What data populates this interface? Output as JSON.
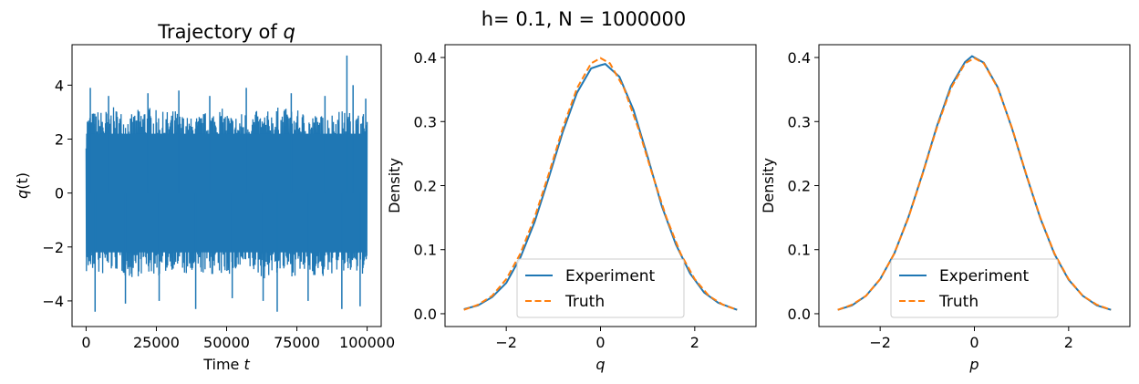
{
  "figure": {
    "suptitle": "h= 0.1, N = 1000000"
  },
  "colors": {
    "experiment": "#1f77b4",
    "truth": "#ff7f0e",
    "trajectory": "#1f77b4"
  },
  "chart_data": [
    {
      "type": "line",
      "title": "Trajectory of q",
      "title_parts": {
        "text": "Trajectory of ",
        "var": "q"
      },
      "xlabel": "Time t",
      "xlabel_parts": {
        "text": "Time ",
        "var": "t"
      },
      "ylabel": "q(t)",
      "ylabel_parts": {
        "var": "q",
        "text": "(t)"
      },
      "xlim": [
        -5000,
        105000
      ],
      "ylim": [
        -4.95,
        5.5
      ],
      "xticks": [
        0,
        25000,
        50000,
        75000,
        100000
      ],
      "xtick_labels": [
        "0",
        "25000",
        "50000",
        "75000",
        "100000"
      ],
      "yticks": [
        -4,
        -2,
        0,
        2,
        4
      ],
      "ytick_labels": [
        "−4",
        "−2",
        "0",
        "2",
        "4"
      ],
      "grid": false,
      "series": [
        {
          "x_range": [
            0,
            100000
          ],
          "envelope_upper": [
            3.0,
            3.1,
            3.2,
            2.9,
            3.3,
            3.0,
            3.1,
            2.8,
            3.0,
            3.2,
            2.9,
            3.1,
            3.0,
            3.2,
            3.1,
            3.0,
            2.9,
            3.1,
            3.0,
            3.0
          ],
          "envelope_lower": [
            -3.0,
            -3.1,
            -2.9,
            -3.2,
            -3.0,
            -3.1,
            -2.8,
            -3.2,
            -3.0,
            -3.1,
            -3.0,
            -2.9,
            -3.2,
            -3.0,
            -3.1,
            -3.0,
            -3.2,
            -2.9,
            -3.1,
            -3.0
          ],
          "spikes": [
            [
              1500,
              3.9
            ],
            [
              3200,
              -4.4
            ],
            [
              8000,
              3.6
            ],
            [
              14000,
              -4.1
            ],
            [
              22000,
              3.7
            ],
            [
              26000,
              -4.0
            ],
            [
              33000,
              3.8
            ],
            [
              39000,
              -4.3
            ],
            [
              44000,
              3.6
            ],
            [
              52000,
              -3.9
            ],
            [
              57000,
              3.9
            ],
            [
              63000,
              -4.0
            ],
            [
              68000,
              -4.4
            ],
            [
              73000,
              3.7
            ],
            [
              79000,
              -4.0
            ],
            [
              85000,
              3.6
            ],
            [
              91000,
              -4.3
            ],
            [
              92800,
              5.1
            ],
            [
              95000,
              4.0
            ],
            [
              97500,
              -4.2
            ],
            [
              99500,
              3.5
            ]
          ]
        }
      ]
    },
    {
      "type": "line",
      "title": "",
      "xlabel": "q",
      "ylabel": "Density",
      "xlim": [
        -3.3,
        3.3
      ],
      "ylim": [
        -0.02,
        0.42
      ],
      "xticks": [
        -2,
        0,
        2
      ],
      "xtick_labels": [
        "−2",
        "0",
        "2"
      ],
      "yticks": [
        0.0,
        0.1,
        0.2,
        0.3,
        0.4
      ],
      "ytick_labels": [
        "0.0",
        "0.1",
        "0.2",
        "0.3",
        "0.4"
      ],
      "legend": {
        "position": "lower-center",
        "entries": [
          "Experiment",
          "Truth"
        ]
      },
      "series": [
        {
          "name": "Experiment",
          "style": "solid",
          "x": [
            -2.9,
            -2.6,
            -2.3,
            -2.0,
            -1.7,
            -1.4,
            -1.1,
            -0.8,
            -0.5,
            -0.2,
            0.0,
            0.1,
            0.4,
            0.7,
            1.0,
            1.3,
            1.6,
            1.9,
            2.2,
            2.5,
            2.9
          ],
          "y": [
            0.007,
            0.013,
            0.026,
            0.048,
            0.088,
            0.143,
            0.212,
            0.284,
            0.345,
            0.383,
            0.388,
            0.39,
            0.37,
            0.318,
            0.245,
            0.168,
            0.108,
            0.063,
            0.033,
            0.017,
            0.006
          ]
        },
        {
          "name": "Truth",
          "style": "dashed",
          "x": [
            -2.9,
            -2.6,
            -2.3,
            -2.0,
            -1.7,
            -1.4,
            -1.1,
            -0.8,
            -0.5,
            -0.2,
            0.0,
            0.2,
            0.5,
            0.8,
            1.1,
            1.4,
            1.7,
            2.0,
            2.3,
            2.6,
            2.9
          ],
          "y": [
            0.006,
            0.014,
            0.028,
            0.054,
            0.094,
            0.15,
            0.218,
            0.29,
            0.352,
            0.391,
            0.399,
            0.391,
            0.352,
            0.29,
            0.218,
            0.15,
            0.094,
            0.054,
            0.028,
            0.014,
            0.006
          ]
        }
      ]
    },
    {
      "type": "line",
      "title": "",
      "xlabel": "p",
      "ylabel": "Density",
      "xlim": [
        -3.3,
        3.3
      ],
      "ylim": [
        -0.02,
        0.42
      ],
      "xticks": [
        -2,
        0,
        2
      ],
      "xtick_labels": [
        "−2",
        "0",
        "2"
      ],
      "yticks": [
        0.0,
        0.1,
        0.2,
        0.3,
        0.4
      ],
      "ytick_labels": [
        "0.0",
        "0.1",
        "0.2",
        "0.3",
        "0.4"
      ],
      "legend": {
        "position": "lower-center",
        "entries": [
          "Experiment",
          "Truth"
        ]
      },
      "series": [
        {
          "name": "Experiment",
          "style": "solid",
          "x": [
            -2.9,
            -2.6,
            -2.3,
            -2.0,
            -1.7,
            -1.4,
            -1.1,
            -0.8,
            -0.5,
            -0.2,
            -0.05,
            0.2,
            0.5,
            0.8,
            1.1,
            1.4,
            1.7,
            2.0,
            2.3,
            2.6,
            2.9
          ],
          "y": [
            0.006,
            0.013,
            0.028,
            0.054,
            0.094,
            0.151,
            0.219,
            0.292,
            0.355,
            0.393,
            0.402,
            0.392,
            0.353,
            0.289,
            0.217,
            0.149,
            0.093,
            0.053,
            0.028,
            0.013,
            0.006
          ]
        },
        {
          "name": "Truth",
          "style": "dashed",
          "x": [
            -2.9,
            -2.6,
            -2.3,
            -2.0,
            -1.7,
            -1.4,
            -1.1,
            -0.8,
            -0.5,
            -0.2,
            0.0,
            0.2,
            0.5,
            0.8,
            1.1,
            1.4,
            1.7,
            2.0,
            2.3,
            2.6,
            2.9
          ],
          "y": [
            0.006,
            0.014,
            0.028,
            0.054,
            0.094,
            0.15,
            0.218,
            0.29,
            0.352,
            0.391,
            0.399,
            0.391,
            0.352,
            0.29,
            0.218,
            0.15,
            0.094,
            0.054,
            0.028,
            0.014,
            0.006
          ]
        }
      ]
    }
  ]
}
